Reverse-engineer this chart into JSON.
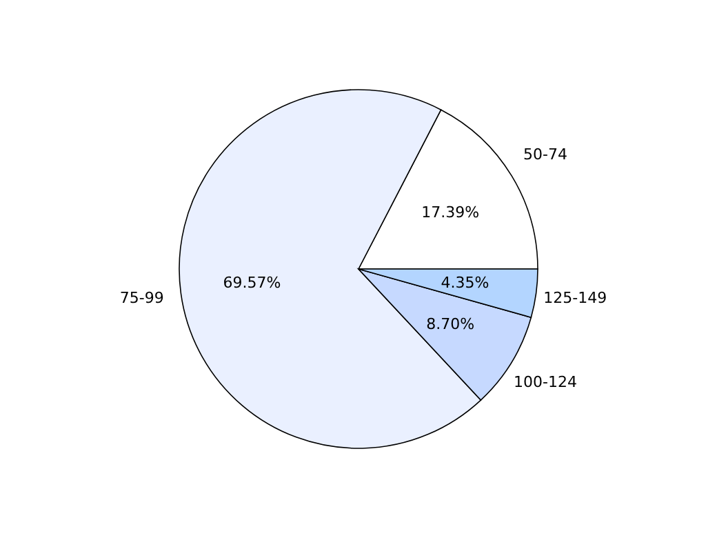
{
  "chart_data": {
    "type": "pie",
    "categories": [
      "50-74",
      "75-99",
      "100-124",
      "125-149"
    ],
    "values": [
      17.39,
      69.57,
      8.7,
      4.35
    ],
    "colors": [
      "#ffffff",
      "#eaf0ff",
      "#c6d9ff",
      "#b3d5ff"
    ],
    "value_labels": [
      "17.39%",
      "69.57%",
      "8.70%",
      "4.35%"
    ],
    "legend": false
  }
}
